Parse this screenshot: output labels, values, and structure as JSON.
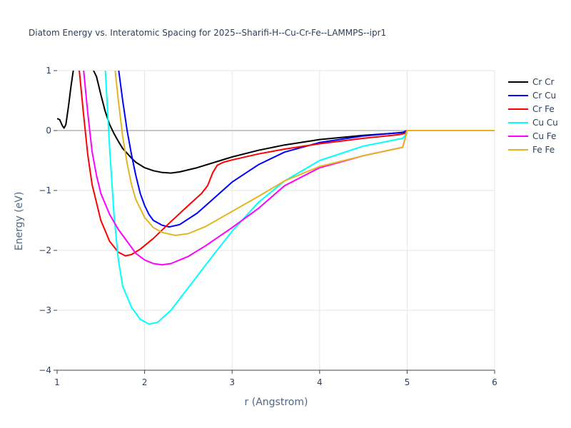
{
  "chart_data": {
    "type": "line",
    "title": "Diatom Energy vs. Interatomic Spacing for 2025--Sharifi-H--Cu-Cr-Fe--LAMMPS--ipr1",
    "xlabel": "r (Angstrom)",
    "ylabel": "Energy (eV)",
    "xlim": [
      1,
      6
    ],
    "ylim": [
      -4,
      1
    ],
    "x_ticks": [
      1,
      2,
      3,
      4,
      5,
      6
    ],
    "x_tick_labels": [
      "1",
      "2",
      "3",
      "4",
      "5",
      "6"
    ],
    "y_ticks": [
      1,
      0,
      -1,
      -2,
      -3,
      -4
    ],
    "y_tick_labels": [
      "1",
      "0",
      "−1",
      "−2",
      "−3",
      "−4"
    ],
    "grid": true,
    "legend_position": "top-right",
    "series": [
      {
        "name": "Cr Cr",
        "color": "#000000",
        "points": [
          [
            1.0,
            0.2
          ],
          [
            1.03,
            0.18
          ],
          [
            1.06,
            0.08
          ],
          [
            1.08,
            0.04
          ],
          [
            1.1,
            0.1
          ],
          [
            1.13,
            0.4
          ],
          [
            1.16,
            0.75
          ],
          [
            1.19,
            1.05
          ],
          [
            1.3,
            1.35
          ],
          [
            1.45,
            0.9
          ],
          [
            1.5,
            0.6
          ],
          [
            1.55,
            0.32
          ],
          [
            1.6,
            0.1
          ],
          [
            1.65,
            -0.05
          ],
          [
            1.7,
            -0.18
          ],
          [
            1.75,
            -0.3
          ],
          [
            1.8,
            -0.38
          ],
          [
            1.85,
            -0.46
          ],
          [
            1.9,
            -0.53
          ],
          [
            2.0,
            -0.62
          ],
          [
            2.1,
            -0.67
          ],
          [
            2.2,
            -0.7
          ],
          [
            2.3,
            -0.71
          ],
          [
            2.4,
            -0.69
          ],
          [
            2.6,
            -0.62
          ],
          [
            2.8,
            -0.53
          ],
          [
            3.0,
            -0.44
          ],
          [
            3.3,
            -0.33
          ],
          [
            3.6,
            -0.24
          ],
          [
            4.0,
            -0.15
          ],
          [
            4.5,
            -0.08
          ],
          [
            4.9,
            -0.04
          ],
          [
            4.97,
            -0.03
          ],
          [
            5.0,
            0.0
          ],
          [
            6.0,
            0.0
          ]
        ]
      },
      {
        "name": "Cr Cu",
        "color": "#0000ff",
        "points": [
          [
            1.7,
            1.05
          ],
          [
            1.75,
            0.5
          ],
          [
            1.8,
            0.0
          ],
          [
            1.85,
            -0.4
          ],
          [
            1.9,
            -0.75
          ],
          [
            1.95,
            -1.05
          ],
          [
            2.0,
            -1.25
          ],
          [
            2.05,
            -1.4
          ],
          [
            2.1,
            -1.5
          ],
          [
            2.2,
            -1.58
          ],
          [
            2.28,
            -1.61
          ],
          [
            2.4,
            -1.57
          ],
          [
            2.6,
            -1.38
          ],
          [
            2.8,
            -1.12
          ],
          [
            3.0,
            -0.86
          ],
          [
            3.3,
            -0.57
          ],
          [
            3.6,
            -0.36
          ],
          [
            4.0,
            -0.2
          ],
          [
            4.5,
            -0.09
          ],
          [
            4.95,
            -0.03
          ],
          [
            5.0,
            0.0
          ],
          [
            6.0,
            0.0
          ]
        ]
      },
      {
        "name": "Cr Fe",
        "color": "#ff0000",
        "points": [
          [
            1.25,
            1.05
          ],
          [
            1.3,
            0.3
          ],
          [
            1.35,
            -0.4
          ],
          [
            1.4,
            -0.9
          ],
          [
            1.5,
            -1.5
          ],
          [
            1.6,
            -1.85
          ],
          [
            1.7,
            -2.03
          ],
          [
            1.78,
            -2.09
          ],
          [
            1.85,
            -2.07
          ],
          [
            1.95,
            -1.98
          ],
          [
            2.1,
            -1.8
          ],
          [
            2.3,
            -1.52
          ],
          [
            2.5,
            -1.25
          ],
          [
            2.65,
            -1.05
          ],
          [
            2.72,
            -0.92
          ],
          [
            2.78,
            -0.7
          ],
          [
            2.83,
            -0.58
          ],
          [
            2.9,
            -0.53
          ],
          [
            3.0,
            -0.49
          ],
          [
            3.3,
            -0.39
          ],
          [
            3.6,
            -0.31
          ],
          [
            4.0,
            -0.22
          ],
          [
            4.5,
            -0.13
          ],
          [
            4.9,
            -0.07
          ],
          [
            4.97,
            -0.05
          ],
          [
            5.0,
            0.0
          ],
          [
            6.0,
            0.0
          ]
        ]
      },
      {
        "name": "Cu Cu",
        "color": "#00ffff",
        "points": [
          [
            1.55,
            1.05
          ],
          [
            1.6,
            -0.3
          ],
          [
            1.65,
            -1.4
          ],
          [
            1.7,
            -2.15
          ],
          [
            1.75,
            -2.6
          ],
          [
            1.85,
            -2.95
          ],
          [
            1.95,
            -3.15
          ],
          [
            2.05,
            -3.23
          ],
          [
            2.15,
            -3.2
          ],
          [
            2.3,
            -3.0
          ],
          [
            2.5,
            -2.62
          ],
          [
            2.8,
            -2.05
          ],
          [
            3.0,
            -1.68
          ],
          [
            3.3,
            -1.2
          ],
          [
            3.6,
            -0.84
          ],
          [
            4.0,
            -0.5
          ],
          [
            4.5,
            -0.26
          ],
          [
            4.95,
            -0.13
          ],
          [
            4.98,
            -0.08
          ],
          [
            5.0,
            0.0
          ],
          [
            6.0,
            0.0
          ]
        ]
      },
      {
        "name": "Cu Fe",
        "color": "#ff00ff",
        "points": [
          [
            1.3,
            1.05
          ],
          [
            1.35,
            0.3
          ],
          [
            1.4,
            -0.35
          ],
          [
            1.45,
            -0.75
          ],
          [
            1.5,
            -1.05
          ],
          [
            1.6,
            -1.4
          ],
          [
            1.7,
            -1.65
          ],
          [
            1.8,
            -1.85
          ],
          [
            1.9,
            -2.05
          ],
          [
            2.0,
            -2.16
          ],
          [
            2.1,
            -2.22
          ],
          [
            2.2,
            -2.24
          ],
          [
            2.3,
            -2.22
          ],
          [
            2.5,
            -2.1
          ],
          [
            2.7,
            -1.92
          ],
          [
            3.0,
            -1.62
          ],
          [
            3.3,
            -1.3
          ],
          [
            3.6,
            -0.92
          ],
          [
            4.0,
            -0.62
          ],
          [
            4.5,
            -0.42
          ],
          [
            4.95,
            -0.28
          ],
          [
            5.0,
            0.0
          ],
          [
            6.0,
            0.0
          ]
        ]
      },
      {
        "name": "Fe Fe",
        "color": "#e6b422",
        "points": [
          [
            1.66,
            1.05
          ],
          [
            1.7,
            0.5
          ],
          [
            1.75,
            -0.1
          ],
          [
            1.8,
            -0.55
          ],
          [
            1.85,
            -0.9
          ],
          [
            1.9,
            -1.15
          ],
          [
            2.0,
            -1.45
          ],
          [
            2.1,
            -1.62
          ],
          [
            2.2,
            -1.7
          ],
          [
            2.35,
            -1.75
          ],
          [
            2.5,
            -1.72
          ],
          [
            2.7,
            -1.6
          ],
          [
            3.0,
            -1.35
          ],
          [
            3.3,
            -1.1
          ],
          [
            3.6,
            -0.84
          ],
          [
            4.0,
            -0.6
          ],
          [
            4.5,
            -0.42
          ],
          [
            4.95,
            -0.28
          ],
          [
            5.0,
            0.0
          ],
          [
            6.0,
            0.0
          ]
        ]
      }
    ]
  }
}
